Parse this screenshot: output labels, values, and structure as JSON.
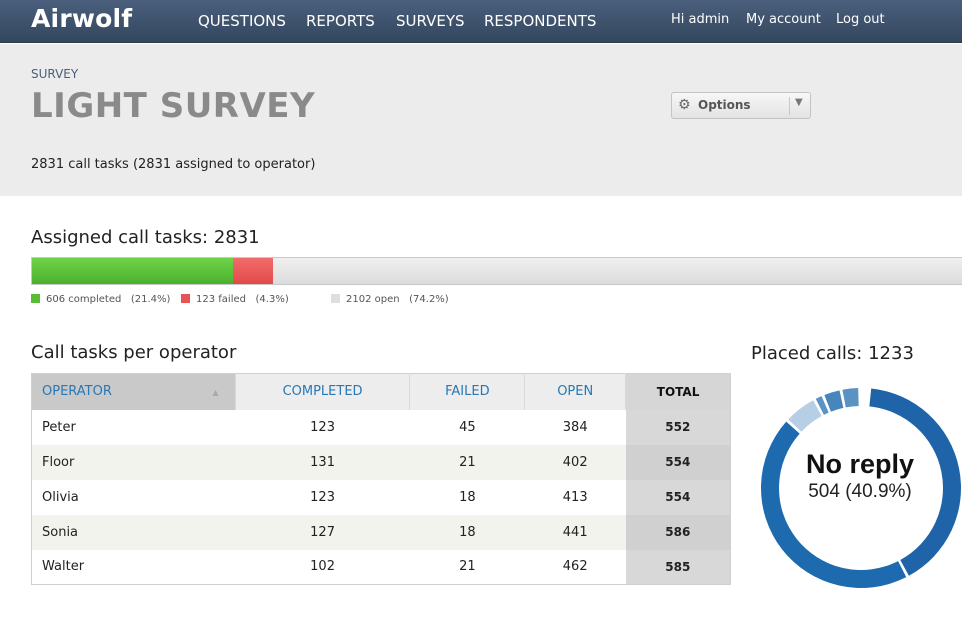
{
  "nav": {
    "brand": "Airwolf",
    "items": [
      "QUESTIONS",
      "REPORTS",
      "SURVEYS",
      "RESPONDENTS"
    ],
    "greeting": "Hi admin",
    "account": "My account",
    "logout": "Log out"
  },
  "header": {
    "breadcrumb": "SURVEY",
    "title": "LIGHT SURVEY",
    "summary": "2831 call tasks (2831 assigned to operator)",
    "options_label": "Options"
  },
  "assigned": {
    "title": "Assigned call tasks: 2831",
    "completed_fraction": 0.214,
    "failed_fraction": 0.043,
    "legend": [
      {
        "label": "606 completed",
        "pct": "(21.4%)",
        "color": "#56bd35"
      },
      {
        "label": "123 failed",
        "pct": "(4.3%)",
        "color": "#e85454"
      },
      {
        "label": "2102 open",
        "pct": "(74.2%)",
        "color": "#dedede"
      }
    ]
  },
  "operators": {
    "title": "Call tasks per operator",
    "columns": [
      "OPERATOR",
      "COMPLETED",
      "FAILED",
      "OPEN",
      "TOTAL"
    ],
    "rows": [
      [
        "Peter",
        "123",
        "45",
        "384",
        "552"
      ],
      [
        "Floor",
        "131",
        "21",
        "402",
        "554"
      ],
      [
        "Olivia",
        "123",
        "18",
        "413",
        "554"
      ],
      [
        "Sonia",
        "127",
        "18",
        "441",
        "586"
      ],
      [
        "Walter",
        "102",
        "21",
        "462",
        "585"
      ]
    ]
  },
  "placed_calls": {
    "title": "Placed calls: 1233",
    "highlight_label": "No reply",
    "highlight_value": "504 (40.9%)"
  },
  "chart_data": {
    "type": "pie",
    "title": "Placed calls: 1233",
    "slices": [
      {
        "fraction": 0.409,
        "color": "#1f64a8"
      },
      {
        "fraction": 0.445,
        "color": "#1e6aaf"
      },
      {
        "fraction": 0.055,
        "color": "#b7cfe4"
      },
      {
        "fraction": 0.015,
        "color": "#5b93c4"
      },
      {
        "fraction": 0.03,
        "color": "#4785bd"
      },
      {
        "fraction": 0.03,
        "color": "#5a92c3"
      }
    ]
  }
}
